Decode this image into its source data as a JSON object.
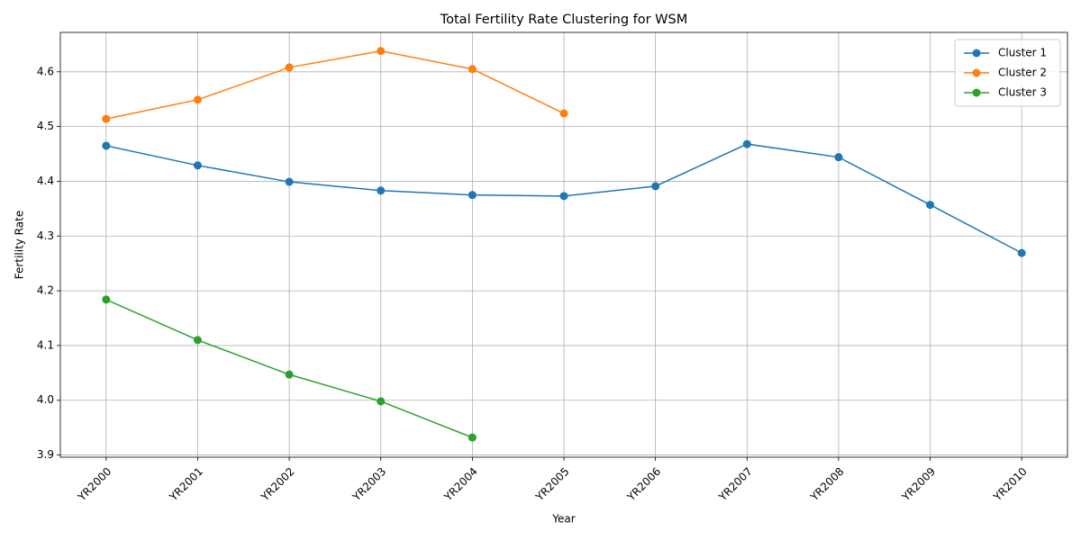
{
  "chart_data": {
    "type": "line",
    "title": "Total Fertility Rate Clustering for WSM",
    "x_label": "Year",
    "y_label": "Fertility Rate",
    "categories": [
      "YR2000",
      "YR2001",
      "YR2002",
      "YR2003",
      "YR2004",
      "YR2005",
      "YR2006",
      "YR2007",
      "YR2008",
      "YR2009",
      "YR2010"
    ],
    "series": [
      {
        "name": "Cluster 1",
        "color": "#1f77b4",
        "values": [
          4.465,
          4.429,
          4.399,
          4.383,
          4.375,
          4.373,
          4.391,
          4.468,
          4.444,
          4.357,
          4.269
        ]
      },
      {
        "name": "Cluster 2",
        "color": "#ff7f0e",
        "values": [
          4.514,
          4.549,
          4.608,
          4.638,
          4.605,
          4.524,
          null,
          null,
          null,
          null,
          null
        ]
      },
      {
        "name": "Cluster 3",
        "color": "#2ca02c",
        "values": [
          4.184,
          4.11,
          4.047,
          3.998,
          3.932,
          null,
          null,
          null,
          null,
          null,
          null
        ]
      }
    ],
    "ylim": [
      3.896,
      4.672
    ],
    "yticks": [
      3.9,
      {
        "value": 4.0,
        "label": "4.0"
      },
      4.1,
      4.2,
      4.3,
      4.4,
      4.5,
      4.6
    ],
    "grid": true,
    "legend": "upper right"
  }
}
